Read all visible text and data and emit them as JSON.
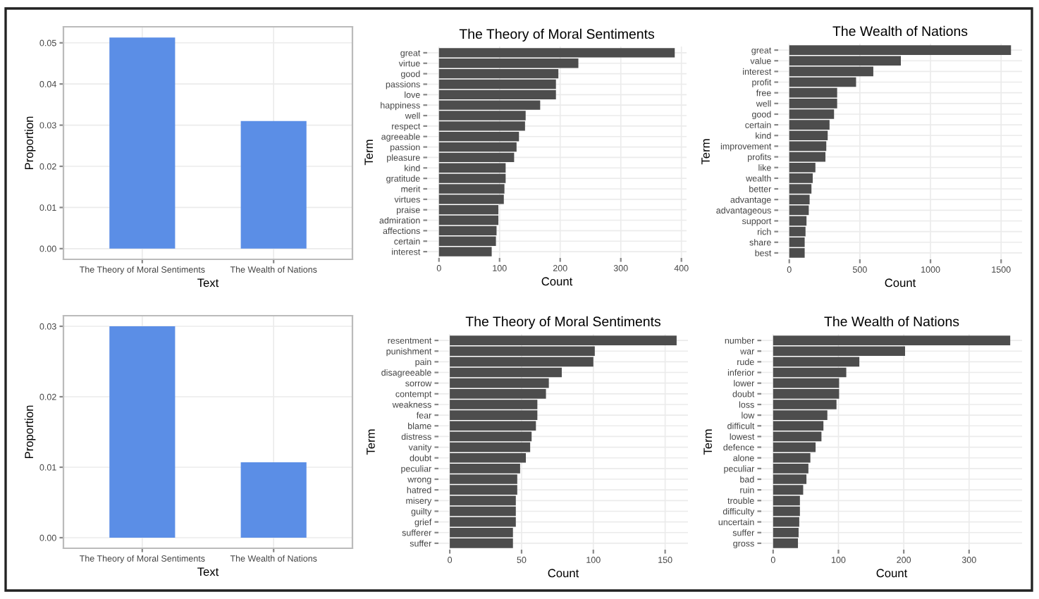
{
  "chart_data": [
    {
      "type": "bar",
      "categories": [
        "The Theory of Moral Sentiments",
        "The Wealth of Nations"
      ],
      "values": [
        0.0513,
        0.031
      ],
      "color": "#5b8ee6",
      "xlabel": "Text",
      "ylabel": "Proportion",
      "ylim": [
        -0.0026,
        0.0539
      ],
      "yticks": [
        {
          "value": 0,
          "label": "0.00"
        },
        {
          "value": 0.01,
          "label": "0.01"
        },
        {
          "value": 0.02,
          "label": "0.02"
        },
        {
          "value": 0.03,
          "label": "0.03"
        },
        {
          "value": 0.04,
          "label": "0.04"
        },
        {
          "value": 0.05,
          "label": "0.05"
        }
      ],
      "grid": true
    },
    {
      "type": "bar",
      "orientation": "horizontal",
      "title": "The Theory of Moral Sentiments",
      "xlabel": "Count",
      "ylabel": "Term",
      "color": "#4d4d4d",
      "grid": true,
      "categories": [
        "great",
        "virtue",
        "good",
        "passions",
        "love",
        "happiness",
        "well",
        "respect",
        "agreeable",
        "passion",
        "pleasure",
        "kind",
        "gratitude",
        "merit",
        "virtues",
        "praise",
        "admiration",
        "affections",
        "certain",
        "interest"
      ],
      "values": [
        389,
        230,
        197,
        193,
        193,
        167,
        143,
        142,
        132,
        128,
        124,
        110,
        110,
        108,
        107,
        98,
        98,
        95,
        94,
        87
      ],
      "xlim": [
        -19.5,
        408.5
      ],
      "xticks": [
        0,
        100,
        200,
        300,
        400
      ]
    },
    {
      "type": "bar",
      "orientation": "horizontal",
      "title": "The Wealth of Nations",
      "xlabel": "Count",
      "ylabel": "Term",
      "color": "#4d4d4d",
      "grid": true,
      "categories": [
        "great",
        "value",
        "interest",
        "profit",
        "free",
        "well",
        "good",
        "certain",
        "kind",
        "improvement",
        "profits",
        "like",
        "wealth",
        "better",
        "advantage",
        "advantageous",
        "support",
        "rich",
        "share",
        "best"
      ],
      "values": [
        1570,
        790,
        595,
        473,
        339,
        339,
        317,
        285,
        272,
        262,
        256,
        185,
        166,
        157,
        144,
        138,
        122,
        115,
        109,
        109
      ],
      "xlim": [
        -78.5,
        1648.5
      ],
      "xticks": [
        0,
        500,
        1000,
        1500
      ]
    },
    {
      "type": "bar",
      "categories": [
        "The Theory of Moral Sentiments",
        "The Wealth of Nations"
      ],
      "values": [
        0.03,
        0.0107
      ],
      "color": "#5b8ee6",
      "xlabel": "Text",
      "ylabel": "Proportion",
      "ylim": [
        -0.0015,
        0.0315
      ],
      "yticks": [
        {
          "value": 0,
          "label": "0.00"
        },
        {
          "value": 0.01,
          "label": "0.01"
        },
        {
          "value": 0.02,
          "label": "0.02"
        },
        {
          "value": 0.03,
          "label": "0.03"
        }
      ],
      "grid": true
    },
    {
      "type": "bar",
      "orientation": "horizontal",
      "title": "The Theory of Moral Sentiments",
      "xlabel": "Count",
      "ylabel": "Term",
      "color": "#4d4d4d",
      "grid": true,
      "categories": [
        "resentment",
        "punishment",
        "pain",
        "disagreeable",
        "sorrow",
        "contempt",
        "weakness",
        "fear",
        "blame",
        "distress",
        "vanity",
        "doubt",
        "peculiar",
        "wrong",
        "hatred",
        "misery",
        "guilty",
        "grief",
        "sufferer",
        "suffer"
      ],
      "values": [
        158,
        101,
        100,
        78,
        69,
        67,
        61,
        61,
        60,
        57,
        56,
        53,
        49,
        47,
        47,
        46,
        46,
        46,
        44,
        44
      ],
      "xlim": [
        -7.9,
        165.9
      ],
      "xticks": [
        0,
        50,
        100,
        150
      ]
    },
    {
      "type": "bar",
      "orientation": "horizontal",
      "title": "The Wealth of Nations",
      "xlabel": "Count",
      "ylabel": "Term",
      "color": "#4d4d4d",
      "grid": true,
      "categories": [
        "number",
        "war",
        "rude",
        "inferior",
        "lower",
        "doubt",
        "loss",
        "low",
        "difficult",
        "lowest",
        "defence",
        "alone",
        "peculiar",
        "bad",
        "ruin",
        "trouble",
        "difficulty",
        "uncertain",
        "suffer",
        "gross"
      ],
      "values": [
        363,
        202,
        132,
        112,
        101,
        101,
        97,
        83,
        77,
        74,
        65,
        57,
        54,
        51,
        46,
        41,
        41,
        40,
        39,
        38
      ],
      "xlim": [
        -18.15,
        381.15
      ],
      "xticks": [
        0,
        100,
        200,
        300
      ]
    }
  ]
}
